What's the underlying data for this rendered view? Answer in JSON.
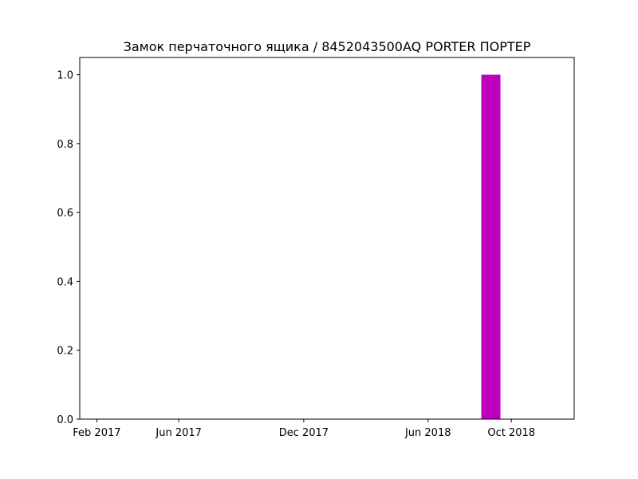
{
  "chart_data": {
    "type": "bar",
    "title": "Замок перчаточного ящика / 8452043500AQ PORTER ПОРТЕР",
    "xlabel": "",
    "ylabel": "",
    "x_tick_labels": [
      "Feb 2017",
      "Jun 2017",
      "Dec 2017",
      "Jun 2018",
      "Oct 2018"
    ],
    "x_tick_dates": [
      "2017-02-01",
      "2017-06-01",
      "2017-12-01",
      "2018-06-01",
      "2018-10-01"
    ],
    "y_ticks": [
      0.0,
      0.2,
      0.4,
      0.6,
      0.8,
      1.0
    ],
    "ylim": [
      0,
      1.05
    ],
    "xlim": [
      "2017-01-07",
      "2019-01-01"
    ],
    "series": [
      {
        "dates": [
          "2018-09-01"
        ],
        "values": [
          1.0
        ],
        "color": "#bf00bf"
      }
    ],
    "grid": false,
    "legend": "none"
  }
}
